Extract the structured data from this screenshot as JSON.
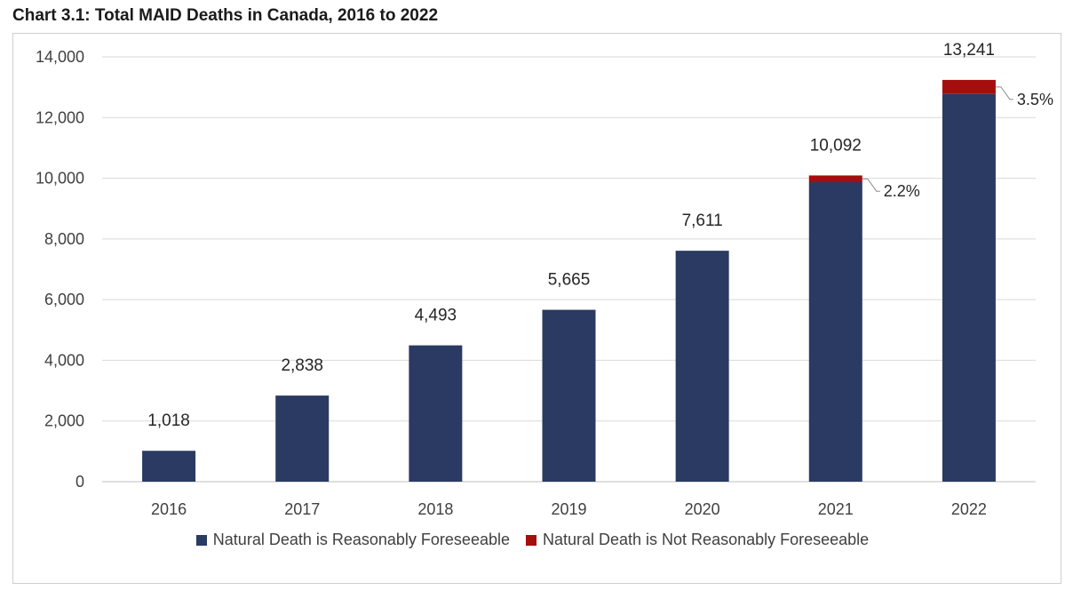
{
  "chart_data": {
    "type": "bar",
    "stacked": true,
    "title": "Chart 3.1: Total MAID Deaths in Canada, 2016 to 2022",
    "categories": [
      "2016",
      "2017",
      "2018",
      "2019",
      "2020",
      "2021",
      "2022"
    ],
    "series": [
      {
        "name": "Natural Death is Reasonably Foreseeable",
        "color": "#2a3a62",
        "values": [
          1018,
          2838,
          4493,
          5665,
          7611,
          9870,
          12778
        ]
      },
      {
        "name": "Natural Death is Not Reasonably Foreseeable",
        "color": "#a50e0e",
        "values": [
          0,
          0,
          0,
          0,
          0,
          222,
          463
        ]
      }
    ],
    "totals": [
      1018,
      2838,
      4493,
      5665,
      7611,
      10092,
      13241
    ],
    "total_labels": [
      "1,018",
      "2,838",
      "4,493",
      "5,665",
      "7,611",
      "10,092",
      "13,241"
    ],
    "percent_labels": [
      "",
      "",
      "",
      "",
      "",
      "2.2%",
      "3.5%"
    ],
    "y_ticks": [
      0,
      2000,
      4000,
      6000,
      8000,
      10000,
      12000,
      14000
    ],
    "y_tick_labels": [
      "0",
      "2,000",
      "4,000",
      "6,000",
      "8,000",
      "10,000",
      "12,000",
      "14,000"
    ],
    "ylim": [
      0,
      14000
    ],
    "xlabel": "",
    "ylabel": "",
    "grid": true,
    "legend_position": "bottom"
  }
}
